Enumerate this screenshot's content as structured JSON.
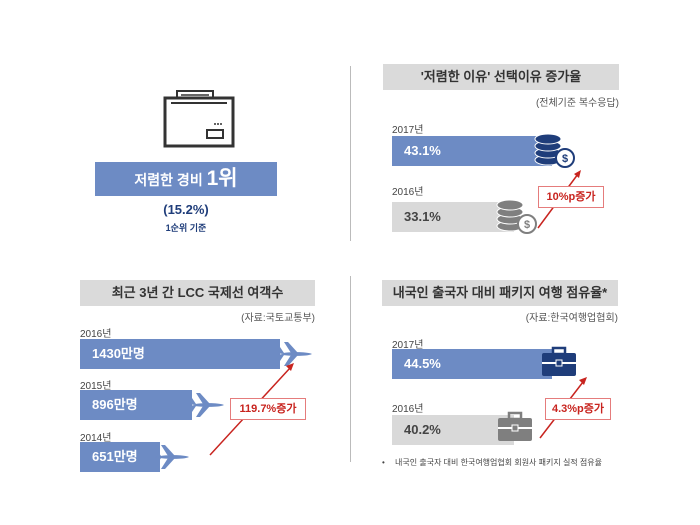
{
  "colors": {
    "accent_blue": "#6d8bc4",
    "gray_bar": "#d9d9d9",
    "header_gray": "#dadada",
    "arrow_red": "#c8241f"
  },
  "highlight": {
    "title_prefix": "저렴한 경비 ",
    "title_rank": "1위",
    "value": "(15.2%)",
    "sub": "1순위 기준"
  },
  "chart_data": [
    {
      "type": "bar",
      "title": "'저렴한 이유' 선택이유 증가율",
      "note": "(전체기준 복수응답)",
      "categories": [
        "2017년",
        "2016년"
      ],
      "values": [
        43.1,
        33.1
      ],
      "value_labels": [
        "43.1%",
        "33.1%"
      ],
      "annotation": "10%p증가",
      "icon": "coins-icon"
    },
    {
      "type": "bar",
      "title": "최근 3년 간 LCC 국제선 여객수",
      "note": "(자료:국토교통부)",
      "categories": [
        "2016년",
        "2015년",
        "2014년"
      ],
      "values": [
        1430,
        896,
        651
      ],
      "value_labels": [
        "1430만명",
        "896만명",
        "651만명"
      ],
      "annotation": "119.7%증가",
      "icon": "airplane-icon"
    },
    {
      "type": "bar",
      "title": "내국인 출국자 대비 패키지 여행 점유율*",
      "note": "(자료:한국여행업협회)",
      "categories": [
        "2017년",
        "2016년"
      ],
      "values": [
        44.5,
        40.2
      ],
      "value_labels": [
        "44.5%",
        "40.2%"
      ],
      "annotation": "4.3%p증가",
      "icon": "briefcase-icon",
      "footnote_bullet": "•",
      "footnote": "내국인 출국자 대비 한국여행업협회 회원사 패키지 실적 점유율"
    }
  ]
}
